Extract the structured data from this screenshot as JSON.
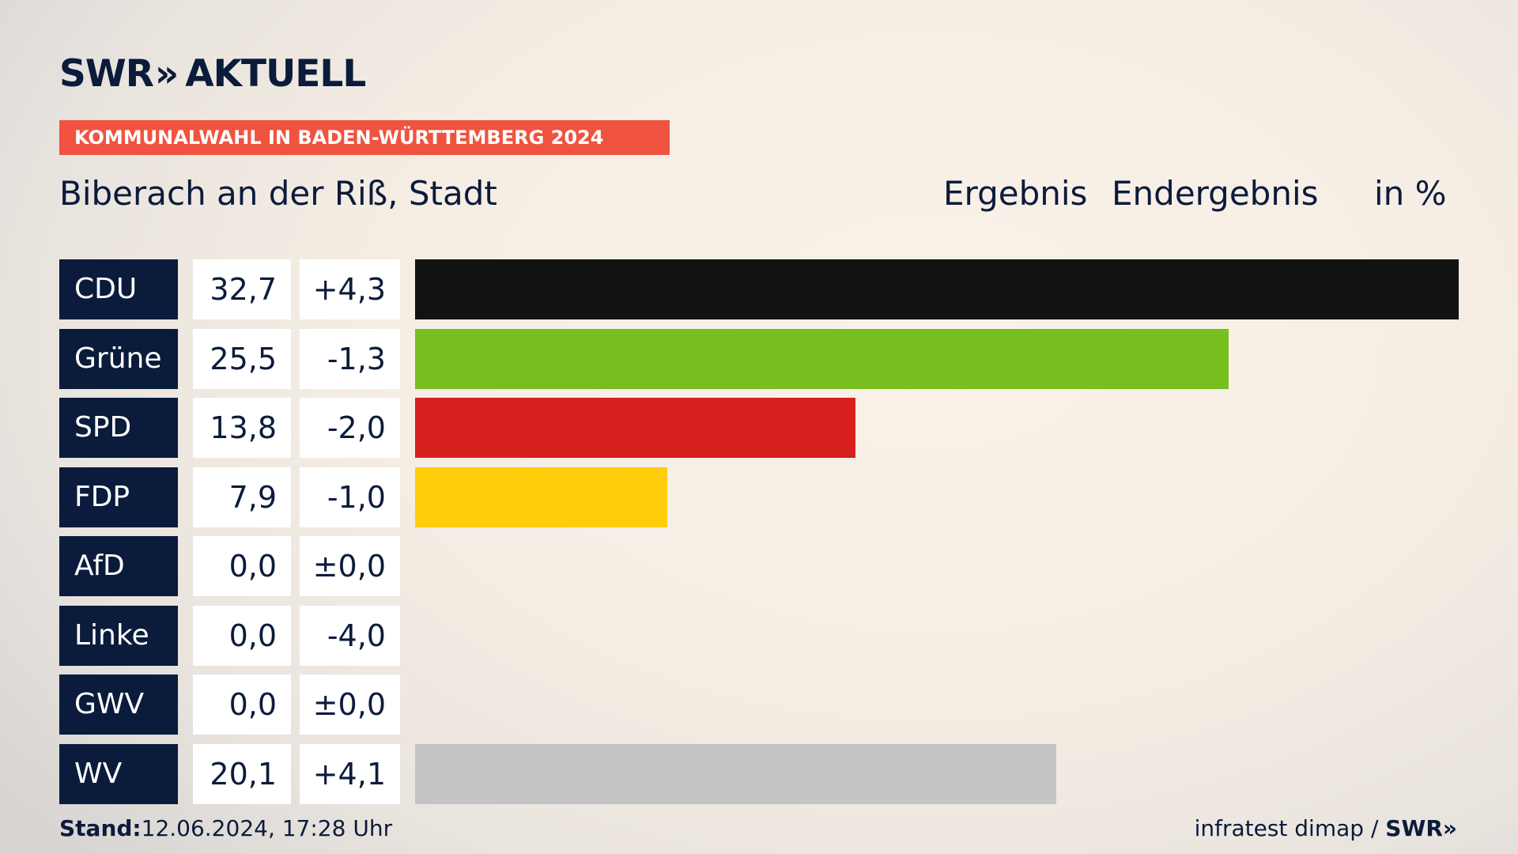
{
  "header": {
    "logo_text": "SWR",
    "logo_chevrons": "»",
    "logo_suffix": "AKTUELL",
    "banner": "KOMMUNALWAHL IN BADEN-WÜRTTEMBERG 2024",
    "subtitle": "Biberach an der Riß, Stadt",
    "col_result": "Ergebnis",
    "col_final": "Endergebnis",
    "col_unit": "in %"
  },
  "chart_data": {
    "type": "bar",
    "title": "KOMMUNALWAHL IN BADEN-WÜRTTEMBERG 2024",
    "subtitle": "Biberach an der Riß, Stadt",
    "unit": "in %",
    "categories": [
      "CDU",
      "Grüne",
      "SPD",
      "FDP",
      "AfD",
      "Linke",
      "GWV",
      "WV"
    ],
    "values": [
      32.7,
      25.5,
      13.8,
      7.9,
      0.0,
      0.0,
      0.0,
      20.1
    ],
    "value_labels": [
      "32,7",
      "25,5",
      "13,8",
      "7,9",
      "0,0",
      "0,0",
      "0,0",
      "20,1"
    ],
    "diff_labels": [
      "+4,3",
      "-1,3",
      "-2,0",
      "-1,0",
      "±0,0",
      "-4,0",
      "±0,0",
      "+4,1"
    ],
    "colors": [
      "#121212",
      "#78be1e",
      "#d71f1d",
      "#fecd0c",
      "#009ee0",
      "#be3075",
      "#7a7a7a",
      "#c4c4c4"
    ],
    "ylim": [
      0,
      32.7
    ]
  },
  "footer": {
    "stand_label": "Stand:",
    "stand_value": "12.06.2024, 17:28 Uhr",
    "source": "infratest dimap /",
    "source_logo": "SWR»"
  }
}
